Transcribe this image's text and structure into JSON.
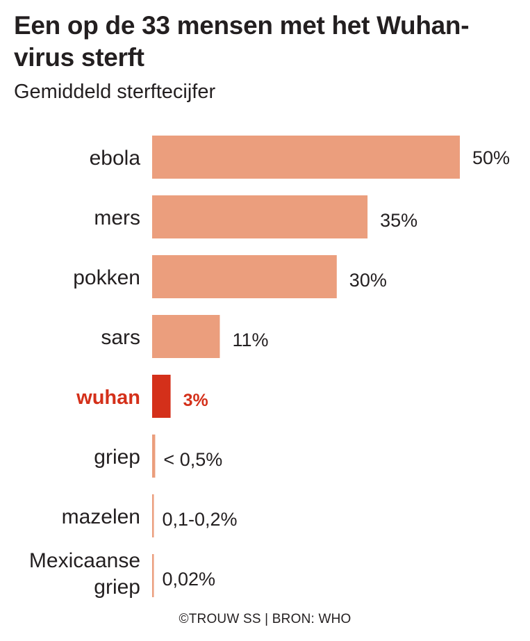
{
  "title": "Een op de 33 mensen met het Wuhan-virus sterft",
  "subtitle": "Gemiddeld sterftecijfer",
  "footer": "©TROUW SS | BRON: WHO",
  "colors": {
    "bar": "#eb9e7d",
    "highlight": "#d4301a",
    "text": "#231f20"
  },
  "chart_data": {
    "type": "bar",
    "orientation": "horizontal",
    "title": "Een op de 33 mensen met het Wuhan-virus sterft",
    "subtitle": "Gemiddeld sterftecijfer",
    "categories": [
      "ebola",
      "mers",
      "pokken",
      "sars",
      "wuhan",
      "griep",
      "mazelen",
      "Mexicaanse griep"
    ],
    "values": [
      50,
      35,
      30,
      11,
      3,
      0.5,
      0.2,
      0.02
    ],
    "value_labels": [
      "50%",
      "35%",
      "30%",
      "11%",
      "3%",
      "< 0,5%",
      "0,1-0,2%",
      "0,02%"
    ],
    "highlight": "wuhan",
    "xlim": [
      0,
      50
    ],
    "unit": "%",
    "grid": false,
    "legend": "none"
  }
}
